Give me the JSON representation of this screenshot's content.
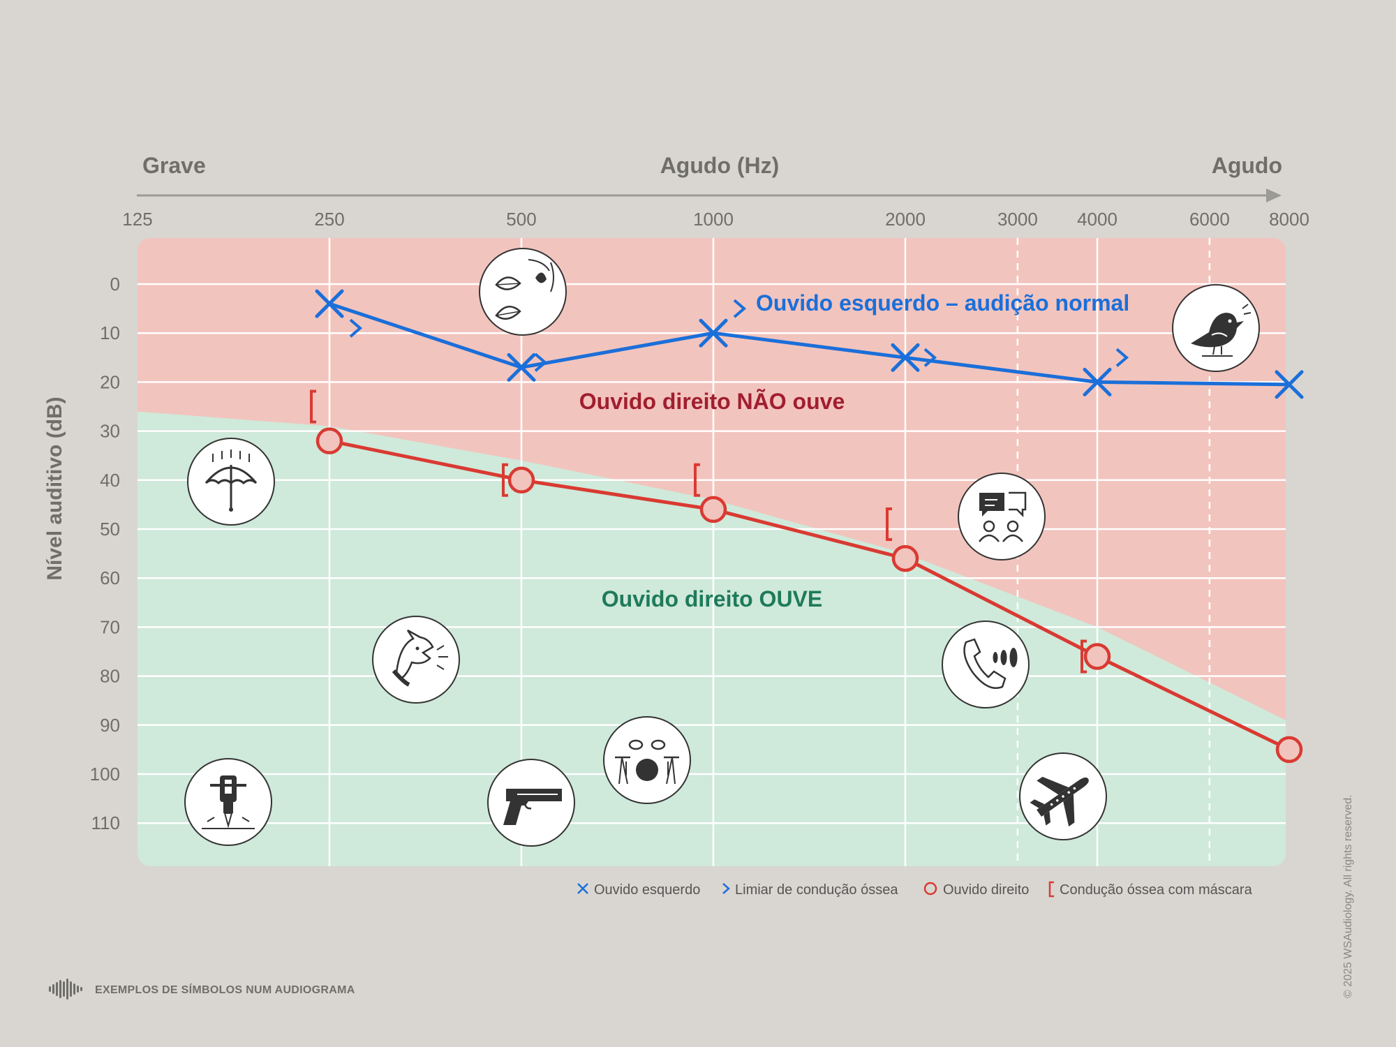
{
  "header": {
    "left_label": "Grave",
    "center_label": "Agudo (Hz)",
    "right_label": "Agudo"
  },
  "y_axis_label": "Nível auditivo (dB)",
  "regions": {
    "cannot_hear": "Ouvido direito NÃO ouve",
    "can_hear": "Ouvido direito OUVE"
  },
  "left_ear_annotation": "Ouvido esquerdo – audição normal",
  "legend": [
    {
      "label": "Ouvido esquerdo",
      "symbol": "x",
      "color": "#1b6fd9"
    },
    {
      "label": "Limiar de condução óssea",
      "symbol": ">",
      "color": "#1b6fd9"
    },
    {
      "label": "Ouvido direito",
      "symbol": "o",
      "color": "#d93a32"
    },
    {
      "label": "Condução óssea com máscara",
      "symbol": "[",
      "color": "#d93a32"
    }
  ],
  "footer": "EXEMPLOS DE SÍMBOLOS NUM AUDIOGRAMA",
  "copyright": "© 2025 WSAudiology. All rights reserved.",
  "colors": {
    "left_ear": "#1b6fd9",
    "right_ear": "#d93a32",
    "cannot_hear_fill": "#f2c4be",
    "can_hear_fill": "#cfe9da",
    "cannot_hear_text": "#a11e2e",
    "can_hear_text": "#1f7a5c",
    "background": "#d9d6d1"
  },
  "icons": [
    "rain-umbrella-icon",
    "leaves-rustling-icon",
    "bird-chirping-icon",
    "conversation-icon",
    "dog-barking-icon",
    "phone-ringing-icon",
    "drum-kit-icon",
    "handgun-icon",
    "jackhammer-icon",
    "airplane-icon"
  ],
  "chart_data": {
    "type": "line",
    "x_scale": "log",
    "x_ticks": [
      "125",
      "250",
      "500",
      "1000",
      "2000",
      "3000",
      "4000",
      "6000",
      "8000"
    ],
    "y_ticks": [
      "0",
      "10",
      "20",
      "30",
      "40",
      "50",
      "60",
      "70",
      "80",
      "90",
      "100",
      "110"
    ],
    "y_inverted": true,
    "grid": true,
    "series": [
      {
        "name": "Ouvido esquerdo",
        "symbol": "x",
        "x": [
          250,
          500,
          1000,
          2000,
          4000,
          8000
        ],
        "y": [
          4,
          17,
          10,
          15,
          20,
          20.5
        ]
      },
      {
        "name": "Limiar de condução óssea",
        "symbol": ">",
        "x": [
          250,
          500,
          1000,
          2000,
          4000
        ],
        "y": [
          9,
          16,
          5,
          15,
          15
        ]
      },
      {
        "name": "Ouvido direito",
        "symbol": "o",
        "x": [
          250,
          500,
          1000,
          2000,
          4000,
          8000
        ],
        "y": [
          32,
          40,
          46,
          56,
          76,
          95
        ]
      },
      {
        "name": "Condução óssea com máscara",
        "symbol": "[",
        "x": [
          250,
          500,
          1000,
          2000,
          4000
        ],
        "y": [
          25,
          40,
          40,
          49,
          76
        ]
      }
    ],
    "hearing_boundary": {
      "x": [
        125,
        250,
        500,
        1000,
        2000,
        4000,
        8000
      ],
      "y": [
        26,
        29,
        36,
        44,
        55,
        70,
        89
      ]
    }
  }
}
